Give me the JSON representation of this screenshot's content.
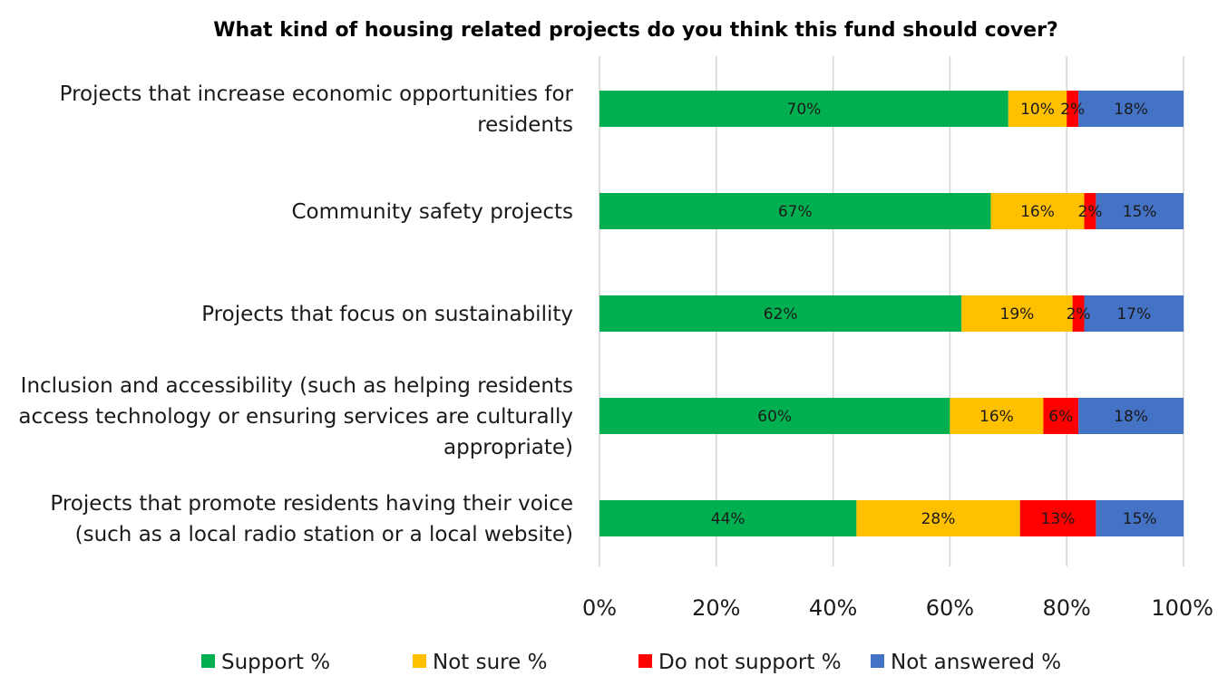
{
  "chart_data": {
    "type": "bar",
    "orientation": "horizontal",
    "stacked": true,
    "title": "What kind of housing related projects do you think this fund should cover?",
    "categories": [
      [
        "Projects that increase economic opportunities for",
        "residents"
      ],
      [
        "Community safety projects"
      ],
      [
        "Projects that focus on sustainability"
      ],
      [
        "Inclusion and accessibility (such as helping residents",
        "access technology or ensuring services are culturally",
        "appropriate)"
      ],
      [
        "Projects that promote residents having their voice",
        "(such as a local radio station or a local website)"
      ]
    ],
    "series": [
      {
        "name": "Support %",
        "color": "#00b050",
        "values": [
          70,
          67,
          62,
          60,
          44
        ],
        "labels": [
          "70%",
          "67%",
          "62%",
          "60%",
          "44%"
        ]
      },
      {
        "name": "Not sure  %",
        "color": "#ffc000",
        "values": [
          10,
          16,
          19,
          16,
          28
        ],
        "labels": [
          "10%",
          "16%",
          "19%",
          "16%",
          "28%"
        ]
      },
      {
        "name": "Do not support %",
        "color": "#ff0000",
        "values": [
          2,
          2,
          2,
          6,
          13
        ],
        "labels": [
          "2%",
          "2%",
          "2%",
          "6%",
          "13%"
        ]
      },
      {
        "name": "Not answered %",
        "color": "#4472c4",
        "values": [
          18,
          15,
          17,
          18,
          15
        ],
        "labels": [
          "18%",
          "15%",
          "17%",
          "18%",
          "15%"
        ]
      }
    ],
    "xlim": [
      0,
      100
    ],
    "x_ticks": [
      "0%",
      "20%",
      "40%",
      "60%",
      "80%",
      "100%"
    ],
    "grid": true,
    "legend_position": "bottom"
  }
}
